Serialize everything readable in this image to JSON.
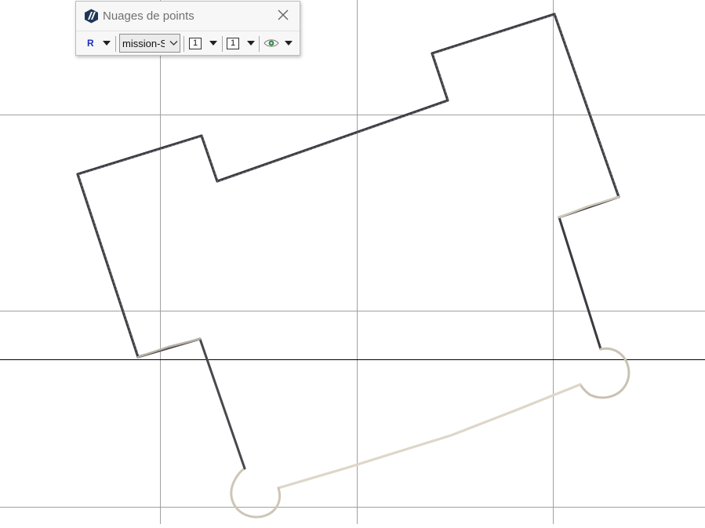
{
  "panel": {
    "title": "Nuages de points",
    "app_icon": "point-cloud-app-icon",
    "close_icon": "close-icon",
    "toolbar": {
      "render_mode": "R",
      "cloud_select": "mission-S",
      "point_size": "1",
      "density": "1",
      "visibility_icon": "eye-icon"
    }
  },
  "colors": {
    "grid_line": "#9c9c9c",
    "axis_line": "#000000",
    "outline_dark": "#3b3b40",
    "outline_light": "#d8d2c4"
  }
}
